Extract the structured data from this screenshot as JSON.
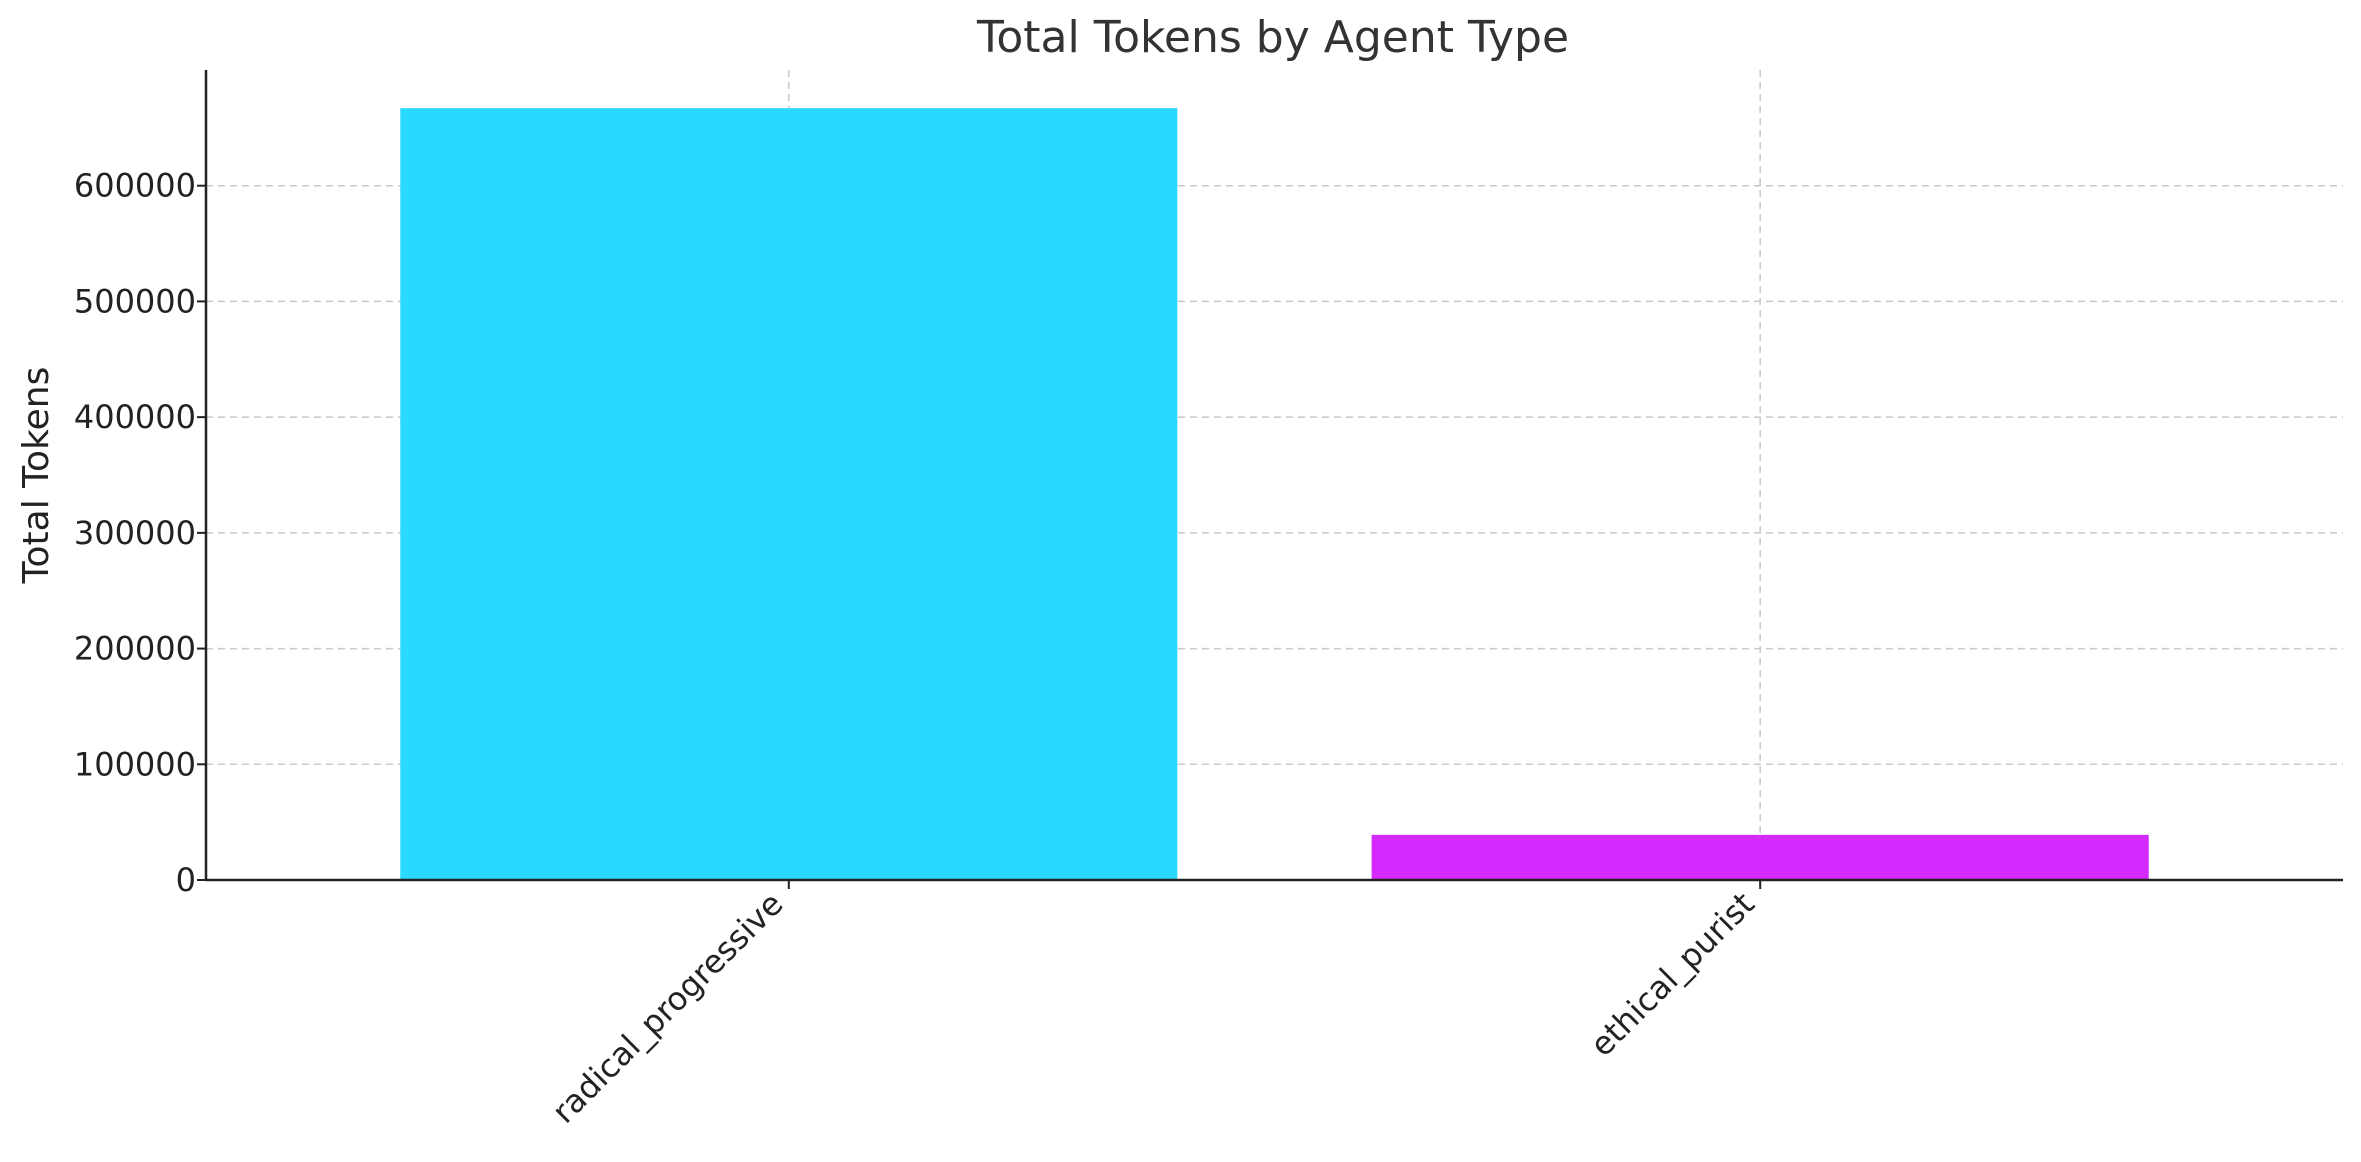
{
  "chart_data": {
    "type": "bar",
    "title": "Total Tokens by Agent Type",
    "xlabel": "",
    "ylabel": "Total Tokens",
    "categories": [
      "radical_progressive",
      "ethical_purist"
    ],
    "values": [
      667000,
      39000
    ],
    "colors": [
      "#29d9ff",
      "#d52aff"
    ],
    "ylim": [
      0,
      700000
    ],
    "yticks": [
      0,
      100000,
      200000,
      300000,
      400000,
      500000,
      600000
    ],
    "ytick_labels": [
      "0",
      "100000",
      "200000",
      "300000",
      "400000",
      "500000",
      "600000"
    ],
    "grid": true,
    "grid_style": "dashed",
    "xtick_rotation_deg": 45
  }
}
